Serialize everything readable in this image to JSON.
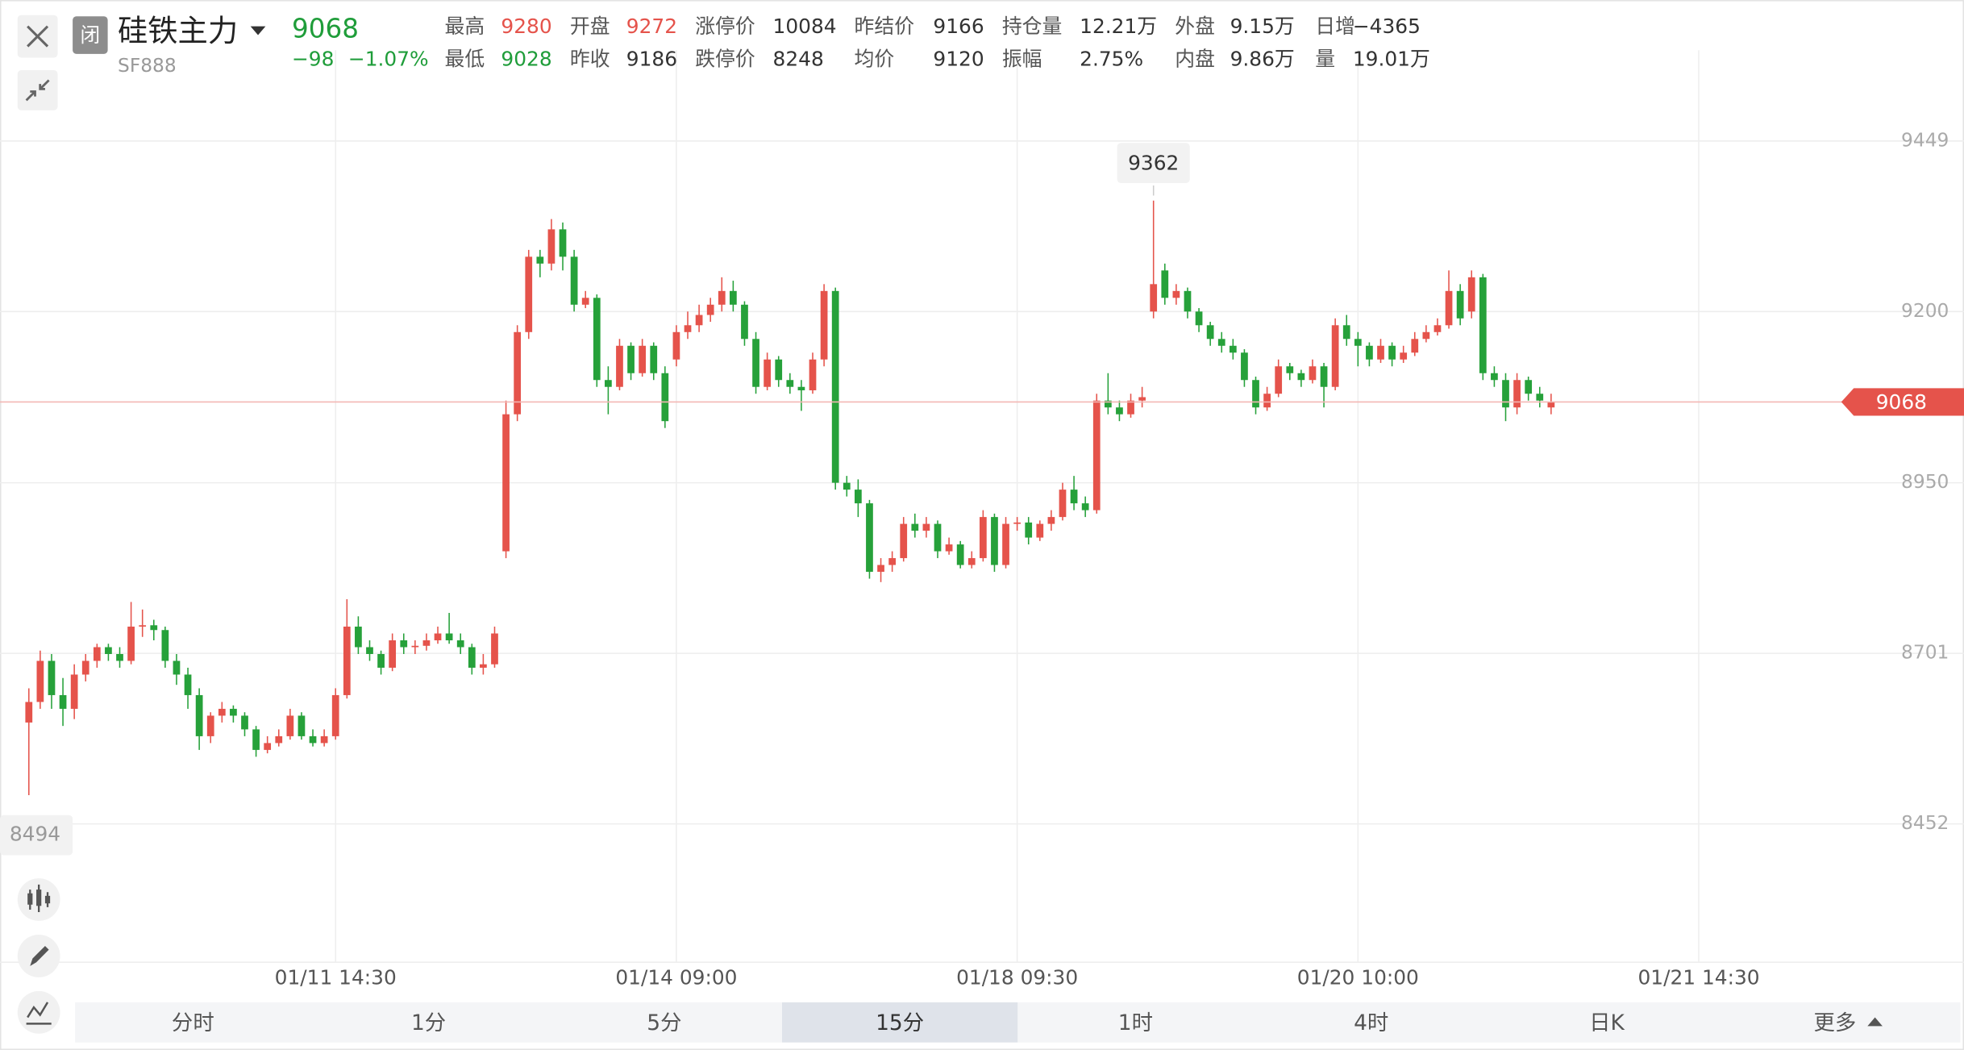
{
  "header": {
    "status": "闭",
    "name": "硅铁主力",
    "code": "SF888",
    "price": "9068",
    "change": "−98",
    "change_pct": "−1.07%",
    "price_color": "#1f9d3a",
    "quotes": [
      [
        {
          "label": "最高",
          "value": "9280",
          "color": "#e5534b"
        },
        {
          "label": "开盘",
          "value": "9272",
          "color": "#e5534b"
        },
        {
          "label": "涨停价",
          "value": "10084",
          "color": "#333333"
        },
        {
          "label": "昨结价",
          "value": "9166",
          "color": "#333333"
        },
        {
          "label": "持仓量",
          "value": "12.21万",
          "color": "#333333"
        },
        {
          "label": "外盘",
          "value": "9.15万",
          "color": "#333333"
        },
        {
          "label": "日增",
          "value": "−4365",
          "color": "#333333"
        }
      ],
      [
        {
          "label": "最低",
          "value": "9028",
          "color": "#1f9d3a"
        },
        {
          "label": "昨收",
          "value": "9186",
          "color": "#333333"
        },
        {
          "label": "跌停价",
          "value": "8248",
          "color": "#333333"
        },
        {
          "label": "均价",
          "value": "9120",
          "color": "#333333"
        },
        {
          "label": "振幅",
          "value": "2.75%",
          "color": "#333333"
        },
        {
          "label": "内盘",
          "value": "9.86万",
          "color": "#333333"
        },
        {
          "label": "量",
          "value": "19.01万",
          "color": "#333333"
        }
      ]
    ]
  },
  "chart_data": {
    "type": "candlestick",
    "up_color": "#e5534b",
    "down_color": "#26a13a",
    "grid": true,
    "ylim": [
      8250,
      9545
    ],
    "yticks": [
      8452,
      8701,
      8950,
      9200,
      9449
    ],
    "xlim": [
      -2.54,
      162.85
    ],
    "xticks": [
      {
        "value": 27,
        "label": "01/11 14:30"
      },
      {
        "value": 57,
        "label": "01/14 09:00"
      },
      {
        "value": 87,
        "label": "01/18 09:30"
      },
      {
        "value": 117,
        "label": "01/20 10:00"
      },
      {
        "value": 147,
        "label": "01/21 14:30"
      }
    ],
    "last_price": 9068,
    "max_annotation": 9362,
    "min_annotation": 8494,
    "ohlc": [
      [
        8600,
        8650,
        8494,
        8630
      ],
      [
        8630,
        8705,
        8620,
        8690
      ],
      [
        8690,
        8700,
        8620,
        8640
      ],
      [
        8640,
        8665,
        8595,
        8620
      ],
      [
        8620,
        8685,
        8605,
        8670
      ],
      [
        8670,
        8700,
        8660,
        8690
      ],
      [
        8690,
        8715,
        8680,
        8710
      ],
      [
        8710,
        8715,
        8690,
        8700
      ],
      [
        8700,
        8710,
        8680,
        8690
      ],
      [
        8690,
        8776,
        8685,
        8740
      ],
      [
        8740,
        8765,
        8725,
        8742
      ],
      [
        8742,
        8750,
        8720,
        8735
      ],
      [
        8735,
        8740,
        8680,
        8690
      ],
      [
        8690,
        8700,
        8655,
        8670
      ],
      [
        8670,
        8680,
        8620,
        8640
      ],
      [
        8640,
        8650,
        8560,
        8580
      ],
      [
        8580,
        8615,
        8570,
        8610
      ],
      [
        8610,
        8630,
        8600,
        8620
      ],
      [
        8620,
        8625,
        8600,
        8610
      ],
      [
        8610,
        8615,
        8580,
        8590
      ],
      [
        8590,
        8595,
        8550,
        8560
      ],
      [
        8560,
        8580,
        8555,
        8570
      ],
      [
        8570,
        8590,
        8565,
        8580
      ],
      [
        8580,
        8620,
        8575,
        8610
      ],
      [
        8610,
        8615,
        8575,
        8580
      ],
      [
        8580,
        8590,
        8565,
        8570
      ],
      [
        8570,
        8590,
        8565,
        8580
      ],
      [
        8580,
        8650,
        8575,
        8640
      ],
      [
        8640,
        8780,
        8635,
        8740
      ],
      [
        8740,
        8755,
        8700,
        8710
      ],
      [
        8710,
        8720,
        8690,
        8700
      ],
      [
        8700,
        8705,
        8670,
        8680
      ],
      [
        8680,
        8730,
        8675,
        8720
      ],
      [
        8720,
        8730,
        8700,
        8710
      ],
      [
        8710,
        8720,
        8700,
        8712
      ],
      [
        8712,
        8730,
        8705,
        8720
      ],
      [
        8720,
        8740,
        8715,
        8730
      ],
      [
        8730,
        8760,
        8715,
        8720
      ],
      [
        8720,
        8730,
        8700,
        8710
      ],
      [
        8710,
        8715,
        8670,
        8680
      ],
      [
        8680,
        8700,
        8670,
        8685
      ],
      [
        8685,
        8740,
        8680,
        8730
      ],
      [
        8850,
        9070,
        8840,
        9050
      ],
      [
        9050,
        9180,
        9040,
        9170
      ],
      [
        9170,
        9290,
        9160,
        9280
      ],
      [
        9280,
        9290,
        9250,
        9270
      ],
      [
        9270,
        9335,
        9260,
        9320
      ],
      [
        9320,
        9330,
        9260,
        9280
      ],
      [
        9280,
        9290,
        9200,
        9210
      ],
      [
        9210,
        9230,
        9205,
        9220
      ],
      [
        9220,
        9225,
        9090,
        9100
      ],
      [
        9100,
        9120,
        9050,
        9090
      ],
      [
        9090,
        9160,
        9085,
        9150
      ],
      [
        9150,
        9155,
        9100,
        9110
      ],
      [
        9110,
        9160,
        9105,
        9150
      ],
      [
        9150,
        9155,
        9100,
        9110
      ],
      [
        9110,
        9120,
        9030,
        9040
      ],
      [
        9130,
        9180,
        9120,
        9170
      ],
      [
        9170,
        9200,
        9160,
        9180
      ],
      [
        9180,
        9210,
        9170,
        9195
      ],
      [
        9195,
        9220,
        9185,
        9210
      ],
      [
        9210,
        9250,
        9200,
        9230
      ],
      [
        9230,
        9245,
        9200,
        9210
      ],
      [
        9210,
        9215,
        9150,
        9160
      ],
      [
        9160,
        9170,
        9080,
        9090
      ],
      [
        9090,
        9140,
        9085,
        9130
      ],
      [
        9130,
        9135,
        9090,
        9100
      ],
      [
        9100,
        9110,
        9080,
        9090
      ],
      [
        9090,
        9100,
        9055,
        9085
      ],
      [
        9085,
        9140,
        9080,
        9130
      ],
      [
        9130,
        9240,
        9120,
        9230
      ],
      [
        9230,
        9235,
        8940,
        8950
      ],
      [
        8950,
        8960,
        8930,
        8940
      ],
      [
        8940,
        8955,
        8900,
        8920
      ],
      [
        8920,
        8925,
        8810,
        8820
      ],
      [
        8820,
        8840,
        8805,
        8830
      ],
      [
        8830,
        8850,
        8820,
        8840
      ],
      [
        8840,
        8900,
        8835,
        8890
      ],
      [
        8890,
        8905,
        8870,
        8880
      ],
      [
        8880,
        8900,
        8870,
        8890
      ],
      [
        8890,
        8895,
        8840,
        8850
      ],
      [
        8850,
        8870,
        8845,
        8860
      ],
      [
        8860,
        8865,
        8825,
        8830
      ],
      [
        8830,
        8850,
        8825,
        8840
      ],
      [
        8840,
        8910,
        8835,
        8900
      ],
      [
        8900,
        8905,
        8820,
        8830
      ],
      [
        8830,
        8900,
        8825,
        8890
      ],
      [
        8890,
        8900,
        8880,
        8892
      ],
      [
        8892,
        8900,
        8860,
        8870
      ],
      [
        8870,
        8895,
        8865,
        8890
      ],
      [
        8890,
        8910,
        8880,
        8900
      ],
      [
        8900,
        8950,
        8895,
        8940
      ],
      [
        8940,
        8960,
        8910,
        8920
      ],
      [
        8920,
        8930,
        8900,
        8910
      ],
      [
        8910,
        9080,
        8905,
        9070
      ],
      [
        9070,
        9110,
        9050,
        9060
      ],
      [
        9060,
        9070,
        9040,
        9050
      ],
      [
        9050,
        9080,
        9045,
        9070
      ],
      [
        9070,
        9090,
        9060,
        9075
      ],
      [
        9200,
        9362,
        9190,
        9240
      ],
      [
        9260,
        9270,
        9210,
        9220
      ],
      [
        9220,
        9240,
        9210,
        9230
      ],
      [
        9230,
        9235,
        9190,
        9200
      ],
      [
        9200,
        9205,
        9170,
        9180
      ],
      [
        9180,
        9185,
        9150,
        9160
      ],
      [
        9160,
        9170,
        9140,
        9150
      ],
      [
        9150,
        9160,
        9130,
        9140
      ],
      [
        9140,
        9145,
        9090,
        9100
      ],
      [
        9100,
        9105,
        9050,
        9060
      ],
      [
        9060,
        9090,
        9055,
        9080
      ],
      [
        9080,
        9130,
        9075,
        9120
      ],
      [
        9120,
        9125,
        9100,
        9110
      ],
      [
        9110,
        9115,
        9090,
        9100
      ],
      [
        9100,
        9130,
        9095,
        9120
      ],
      [
        9120,
        9125,
        9060,
        9090
      ],
      [
        9090,
        9190,
        9085,
        9180
      ],
      [
        9180,
        9195,
        9150,
        9160
      ],
      [
        9160,
        9170,
        9120,
        9150
      ],
      [
        9150,
        9155,
        9120,
        9130
      ],
      [
        9130,
        9160,
        9125,
        9150
      ],
      [
        9150,
        9155,
        9120,
        9130
      ],
      [
        9130,
        9150,
        9125,
        9140
      ],
      [
        9140,
        9170,
        9135,
        9160
      ],
      [
        9160,
        9180,
        9155,
        9170
      ],
      [
        9170,
        9190,
        9165,
        9180
      ],
      [
        9180,
        9260,
        9175,
        9230
      ],
      [
        9230,
        9240,
        9180,
        9190
      ],
      [
        9200,
        9260,
        9190,
        9250
      ],
      [
        9250,
        9255,
        9100,
        9110
      ],
      [
        9110,
        9120,
        9090,
        9100
      ],
      [
        9100,
        9110,
        9040,
        9060
      ],
      [
        9060,
        9110,
        9050,
        9100
      ],
      [
        9100,
        9105,
        9070,
        9080
      ],
      [
        9080,
        9090,
        9060,
        9070
      ],
      [
        9060,
        9080,
        9050,
        9068
      ]
    ]
  },
  "tabs": [
    "分时",
    "1分",
    "5分",
    "15分",
    "1时",
    "4时",
    "日K",
    "更多"
  ],
  "active_tab": "15分"
}
